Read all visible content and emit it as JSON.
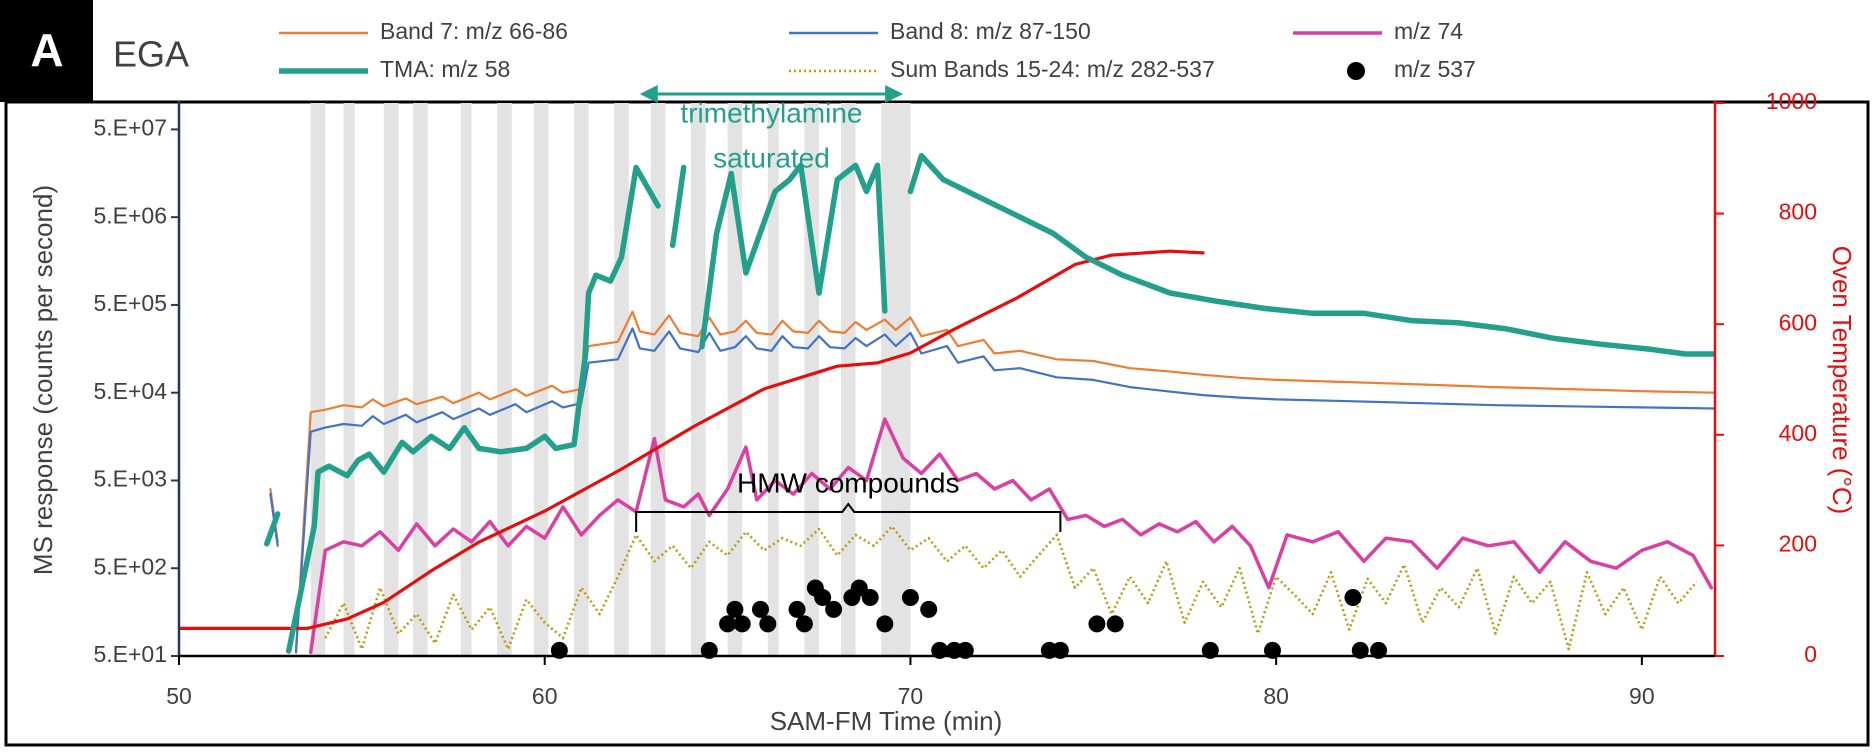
{
  "chart_data": {
    "type": "line",
    "panel_label": "A",
    "title": "EGA",
    "x_label": "SAM-FM Time (min)",
    "y_label": "MS response (counts per second)",
    "y2_label": "Oven Temperature (°C)",
    "xlim": [
      50,
      92
    ],
    "xticks": [
      50,
      60,
      70,
      80,
      90
    ],
    "ylim": [
      50,
      100000000
    ],
    "log_y": true,
    "yticks": [
      {
        "value": 50,
        "label": "5.E+01"
      },
      {
        "value": 500,
        "label": "5.E+02"
      },
      {
        "value": 5000,
        "label": "5.E+03"
      },
      {
        "value": 50000,
        "label": "5.E+04"
      },
      {
        "value": 500000,
        "label": "5.E+05"
      },
      {
        "value": 5000000,
        "label": "5.E+06"
      },
      {
        "value": 50000000,
        "label": "5.E+07"
      }
    ],
    "y2lim": [
      0,
      1000
    ],
    "y2ticks": [
      0,
      200,
      400,
      600,
      800,
      1000
    ],
    "legend": "top",
    "shaded_regions": [
      [
        53.6,
        54.0
      ],
      [
        54.5,
        54.8
      ],
      [
        55.6,
        56.0
      ],
      [
        56.4,
        56.8
      ],
      [
        57.7,
        58.0
      ],
      [
        58.7,
        59.1
      ],
      [
        59.7,
        60.1
      ],
      [
        60.8,
        61.2
      ],
      [
        61.9,
        62.3
      ],
      [
        62.9,
        63.3
      ],
      [
        64.0,
        64.4
      ],
      [
        65.0,
        65.4
      ],
      [
        66.1,
        66.4
      ],
      [
        67.1,
        67.5
      ],
      [
        68.1,
        68.5
      ],
      [
        69.2,
        69.6
      ],
      [
        69.6,
        70.0
      ]
    ],
    "series": [
      {
        "name": "Band 7: m/z 66-86",
        "color": "#ed7d31",
        "x": [
          52.5,
          52.7,
          52.9,
          53.2,
          53.6,
          54.0,
          54.5,
          55.0,
          55.3,
          55.6,
          56.2,
          56.5,
          57.2,
          57.5,
          58.2,
          58.5,
          59.2,
          59.5,
          60.2,
          60.5,
          61.0,
          61.2,
          62.0,
          62.4,
          62.6,
          63.0,
          63.4,
          63.7,
          64.2,
          64.5,
          64.8,
          65.2,
          65.5,
          65.8,
          66.2,
          66.5,
          66.8,
          67.2,
          67.5,
          67.8,
          68.2,
          68.5,
          68.8,
          69.3,
          69.6,
          70.0,
          70.3,
          71.0,
          71.3,
          72.0,
          72.3,
          73.0,
          74.0,
          75.0,
          76.0,
          77.0,
          78.0,
          79.0,
          80.0,
          82.0,
          84.0,
          86.0,
          88.0,
          90.0,
          92.0
        ],
        "values": [
          4000,
          1000,
          null,
          60,
          30000,
          32000,
          36000,
          34000,
          42000,
          35000,
          43000,
          37000,
          45000,
          38000,
          50000,
          42000,
          55000,
          46000,
          60000,
          50000,
          55000,
          170000,
          190000,
          420000,
          250000,
          230000,
          380000,
          240000,
          220000,
          360000,
          230000,
          250000,
          330000,
          240000,
          230000,
          330000,
          250000,
          240000,
          330000,
          250000,
          240000,
          320000,
          260000,
          340000,
          260000,
          360000,
          220000,
          260000,
          170000,
          200000,
          140000,
          150000,
          120000,
          115000,
          95000,
          88000,
          80000,
          74000,
          70000,
          66000,
          62000,
          58000,
          55000,
          52000,
          50000
        ]
      },
      {
        "name": "Band 8: m/z 87-150",
        "color": "#4472c4",
        "x": [
          52.5,
          52.7,
          52.9,
          53.2,
          53.6,
          54.0,
          54.5,
          55.0,
          55.3,
          55.6,
          56.2,
          56.5,
          57.2,
          57.5,
          58.2,
          58.5,
          59.2,
          59.5,
          60.2,
          60.5,
          61.0,
          61.2,
          62.0,
          62.4,
          62.6,
          63.0,
          63.4,
          63.7,
          64.2,
          64.5,
          64.8,
          65.2,
          65.5,
          65.8,
          66.2,
          66.5,
          66.8,
          67.2,
          67.5,
          67.8,
          68.2,
          68.5,
          68.8,
          69.3,
          69.6,
          70.0,
          70.3,
          71.0,
          71.3,
          72.0,
          72.3,
          73.0,
          74.0,
          75.0,
          76.0,
          77.0,
          78.0,
          79.0,
          80.0,
          82.0,
          84.0,
          86.0,
          88.0,
          90.0,
          92.0
        ],
        "values": [
          3500,
          900,
          null,
          55,
          18000,
          20000,
          22000,
          21000,
          27000,
          22000,
          28000,
          23000,
          30000,
          25000,
          33000,
          28000,
          37000,
          30000,
          40000,
          34000,
          38000,
          110000,
          120000,
          270000,
          160000,
          150000,
          250000,
          160000,
          145000,
          240000,
          150000,
          165000,
          220000,
          160000,
          150000,
          220000,
          165000,
          160000,
          220000,
          165000,
          160000,
          210000,
          170000,
          230000,
          170000,
          240000,
          140000,
          170000,
          110000,
          130000,
          90000,
          95000,
          75000,
          70000,
          58000,
          52000,
          47000,
          44000,
          42000,
          40000,
          38000,
          36000,
          35000,
          34000,
          33000
        ]
      },
      {
        "name": "m/z 74",
        "color": "#dc3fa3",
        "x": [
          53.6,
          54.0,
          54.5,
          55.0,
          55.5,
          56.0,
          56.5,
          57.0,
          57.5,
          58.0,
          58.5,
          59.0,
          59.5,
          60.0,
          60.5,
          61.0,
          61.5,
          62.0,
          62.5,
          63.0,
          63.3,
          63.8,
          64.2,
          64.5,
          65.0,
          65.5,
          65.8,
          66.3,
          66.8,
          67.3,
          67.8,
          68.3,
          68.8,
          69.3,
          69.8,
          70.3,
          70.8,
          71.3,
          71.8,
          72.3,
          72.8,
          73.3,
          73.8,
          74.3,
          74.8,
          75.3,
          75.8,
          76.3,
          76.8,
          77.3,
          77.8,
          78.3,
          78.8,
          79.3,
          79.8,
          80.3,
          81.0,
          81.7,
          82.4,
          83.0,
          83.7,
          84.4,
          85.1,
          85.8,
          86.5,
          87.2,
          87.9,
          88.6,
          89.3,
          90.0,
          90.7,
          91.4,
          91.9
        ],
        "values": [
          55,
          800,
          1000,
          900,
          1300,
          800,
          1600,
          900,
          1400,
          1000,
          1700,
          900,
          1500,
          1100,
          2500,
          1200,
          2000,
          3000,
          2200,
          15000,
          3000,
          2500,
          3500,
          2000,
          4000,
          12000,
          3000,
          5000,
          3500,
          6000,
          4000,
          7000,
          5000,
          25000,
          9000,
          6000,
          10000,
          5000,
          6000,
          4000,
          5000,
          3000,
          4000,
          1800,
          2000,
          1500,
          1800,
          1200,
          1600,
          1300,
          1700,
          1000,
          1500,
          900,
          300,
          1200,
          1000,
          1300,
          600,
          1100,
          1000,
          500,
          1100,
          900,
          1000,
          450,
          1000,
          600,
          500,
          800,
          1000,
          700,
          300
        ]
      },
      {
        "name": "TMA: m/z 58",
        "color": "#22a08b",
        "x": [
          52.4,
          52.7,
          52.85,
          53.0,
          53.7,
          53.8,
          54.1,
          54.6,
          54.9,
          55.2,
          55.6,
          56.1,
          56.4,
          56.9,
          57.4,
          57.8,
          58.2,
          58.8,
          59.5,
          60.0,
          60.3,
          60.8,
          61.1,
          61.2,
          61.4,
          61.8,
          62.1,
          62.5,
          63.1,
          63.3,
          63.5,
          63.8,
          64.0,
          64.3,
          64.7,
          65.1,
          65.5,
          66.3,
          66.7,
          67.0,
          67.5,
          68.0,
          68.5,
          68.8,
          69.1,
          69.3,
          69.6,
          70.0,
          70.3,
          70.9,
          71.9,
          72.9,
          73.9,
          74.8,
          75.8,
          77.1,
          78.4,
          79.7,
          81.0,
          82.4,
          83.7,
          85.0,
          86.3,
          87.6,
          88.9,
          90.2,
          91.2,
          92.0
        ],
        "values": [
          950,
          2080,
          null,
          57,
          1520,
          6230,
          7280,
          5670,
          8520,
          9960,
          6230,
          13600,
          10600,
          15900,
          11600,
          19900,
          11600,
          10600,
          11600,
          15900,
          11600,
          12800,
          122000,
          684000,
          1090000,
          935000,
          1750000,
          18400000,
          6730000,
          null,
          2390000,
          18400000,
          null,
          167000,
          3270000,
          15700000,
          1160000,
          9820000,
          13400000,
          19500000,
          684000,
          13400000,
          19500000,
          9820000,
          19500000,
          427000,
          null,
          9820000,
          25100000,
          13400000,
          8380000,
          5240000,
          3270000,
          1750000,
          1090000,
          684000,
          549000,
          455000,
          402000,
          402000,
          332000,
          312000,
          267000,
          208000,
          178000,
          157000,
          138000,
          138000
        ]
      },
      {
        "name": "Sum Bands 15-24: m/z 282-537",
        "color": "#bf9a10",
        "dash": "dotted",
        "x": [
          54.0,
          54.5,
          55.0,
          55.5,
          56.0,
          56.5,
          57.0,
          57.5,
          58.0,
          58.5,
          59.0,
          59.5,
          60.0,
          60.5,
          61.0,
          61.5,
          62.0,
          62.5,
          63.0,
          63.5,
          64.0,
          64.5,
          65.0,
          65.5,
          66.0,
          66.5,
          67.0,
          67.5,
          68.0,
          68.5,
          69.0,
          69.5,
          70.0,
          70.5,
          71.0,
          71.5,
          72.0,
          72.5,
          73.0,
          73.5,
          74.0,
          74.5,
          75.0,
          75.5,
          76.0,
          76.5,
          77.0,
          77.5,
          78.0,
          78.5,
          79.0,
          79.5,
          80.0,
          80.5,
          81.0,
          81.5,
          82.0,
          82.5,
          83.0,
          83.5,
          84.0,
          84.5,
          85.0,
          85.5,
          86.0,
          86.5,
          87.0,
          87.5,
          88.0,
          88.5,
          89.0,
          89.5,
          90.0,
          90.5,
          91.0,
          91.5
        ],
        "values": [
          80,
          200,
          60,
          300,
          90,
          150,
          70,
          250,
          100,
          180,
          60,
          220,
          120,
          80,
          300,
          150,
          400,
          1200,
          600,
          900,
          500,
          1000,
          700,
          1300,
          800,
          1100,
          900,
          1400,
          700,
          1200,
          900,
          1500,
          800,
          1100,
          600,
          900,
          500,
          800,
          400,
          700,
          1200,
          300,
          500,
          150,
          400,
          200,
          600,
          120,
          350,
          180,
          500,
          90,
          400,
          250,
          150,
          450,
          100,
          380,
          200,
          550,
          120,
          300,
          180,
          500,
          90,
          400,
          200,
          350,
          60,
          450,
          150,
          300,
          100,
          400,
          200,
          350
        ]
      },
      {
        "name": "m/z 537",
        "color": "#000000",
        "type": "scatter",
        "x": [
          60.4,
          64.5,
          65.0,
          65.2,
          65.4,
          65.9,
          66.1,
          66.9,
          67.1,
          67.4,
          67.6,
          67.9,
          68.4,
          68.6,
          68.9,
          69.3,
          70.0,
          70.5,
          70.8,
          71.2,
          71.5,
          73.8,
          74.1,
          75.1,
          75.6,
          78.2,
          79.9,
          82.1,
          82.3,
          82.8
        ],
        "values": [
          58,
          58,
          116,
          170,
          116,
          170,
          116,
          170,
          116,
          298,
          232,
          170,
          232,
          298,
          232,
          116,
          232,
          170,
          58,
          58,
          58,
          58,
          58,
          116,
          116,
          58,
          58,
          232,
          58,
          58
        ]
      },
      {
        "color": "#e80c0c",
        "axis": "y2",
        "x": [
          50.0,
          53.5,
          54.6,
          55.6,
          56.9,
          58.2,
          60.0,
          62.1,
          64.1,
          66.0,
          68.0,
          69.1,
          70.0,
          71.2,
          72.9,
          74.5,
          75.5,
          77.1,
          78.0
        ],
        "values": [
          50,
          50,
          67,
          97,
          154,
          206,
          262,
          338,
          416,
          483,
          524,
          530,
          548,
          591,
          647,
          708,
          725,
          732,
          729
        ]
      }
    ],
    "annotations": [
      {
        "lines": [
          "trimethylamine",
          "saturated"
        ],
        "x_start": 62.6,
        "x_end": 69.8,
        "color": "#22a08b"
      },
      {
        "text": "HMW compounds",
        "x_start": 62.5,
        "x_end": 74.1,
        "color": "#000000"
      }
    ]
  }
}
